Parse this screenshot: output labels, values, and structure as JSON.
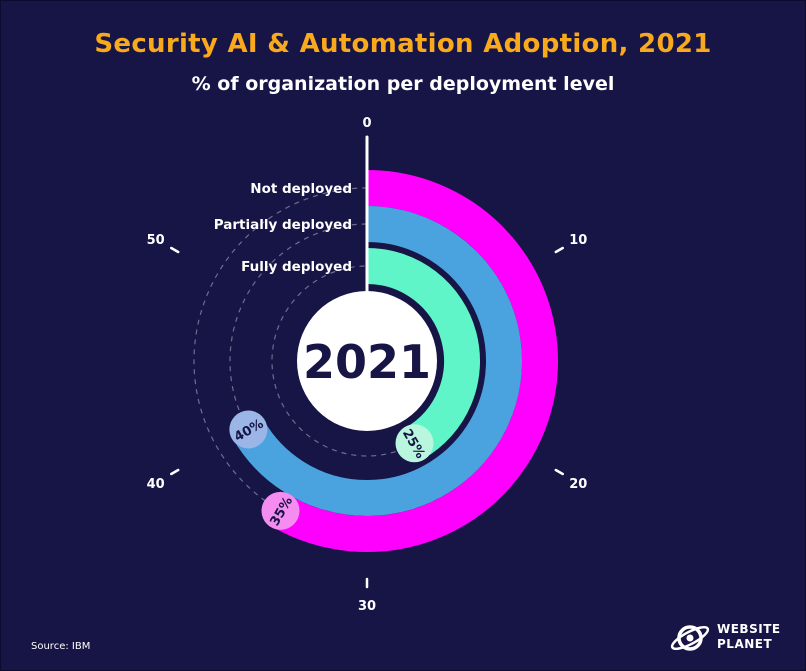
{
  "title": "Security AI & Automation Adoption, 2021",
  "subtitle": "% of organization per deployment level",
  "center_label": "2021",
  "source": "Source: IBM",
  "logo": {
    "line1": "WEBSITE",
    "line2": "PLANET"
  },
  "colors": {
    "background": "#171446",
    "title": "#f9a91c",
    "not_deployed": "#ff00ff",
    "partially_deployed": "#4aa3df",
    "fully_deployed": "#5ff5c8",
    "gridline": "#6f6d8e"
  },
  "chart_data": {
    "type": "radial-bar",
    "title": "Security AI & Automation Adoption, 2021",
    "subtitle": "% of organization per deployment level",
    "scale_max": 60,
    "ticks": [
      0,
      10,
      20,
      30,
      40,
      50
    ],
    "categories": [
      "Not deployed",
      "Partially deployed",
      "Fully deployed"
    ],
    "values": [
      35,
      40,
      25
    ],
    "value_labels": [
      "35%",
      "40%",
      "25%"
    ],
    "colors": [
      "#ff00ff",
      "#4aa3df",
      "#5ff5c8"
    ],
    "label_colors": [
      "#f58cef",
      "#9bb6e6",
      "#b8f7de"
    ]
  }
}
